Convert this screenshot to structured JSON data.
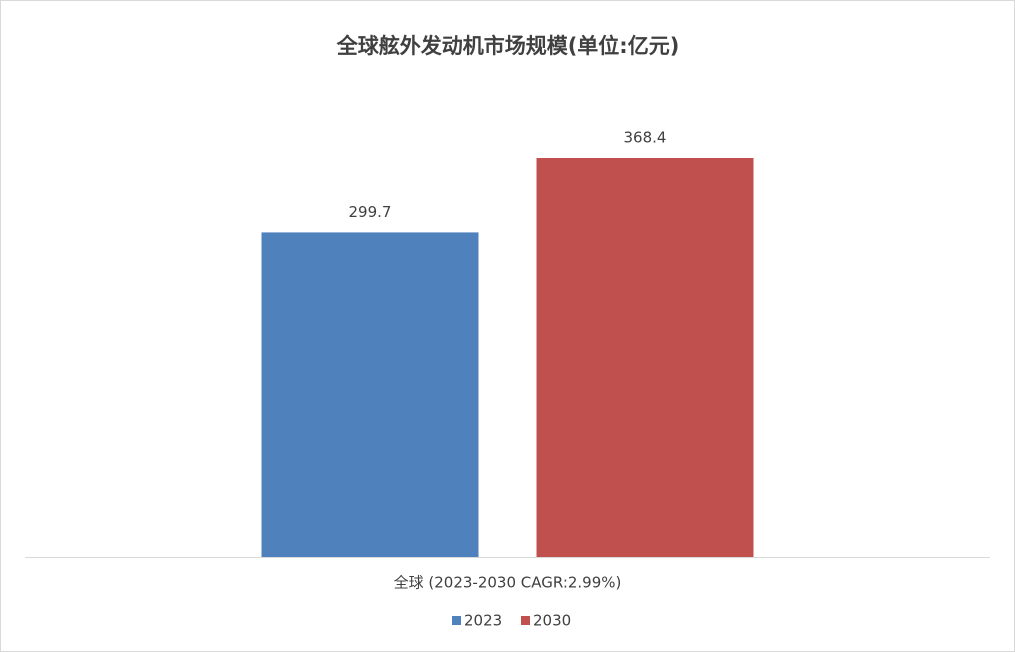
{
  "chart_data": {
    "type": "bar",
    "title": "全球舷外发动机市场规模(单位:亿元)",
    "categories": [
      "全球 (2023-2030 CAGR:2.99%)"
    ],
    "series": [
      {
        "name": "2023",
        "color": "#4f81bd",
        "values": [
          299.7
        ]
      },
      {
        "name": "2030",
        "color": "#c0504d",
        "values": [
          368.4
        ]
      }
    ],
    "legend": "bottom"
  }
}
